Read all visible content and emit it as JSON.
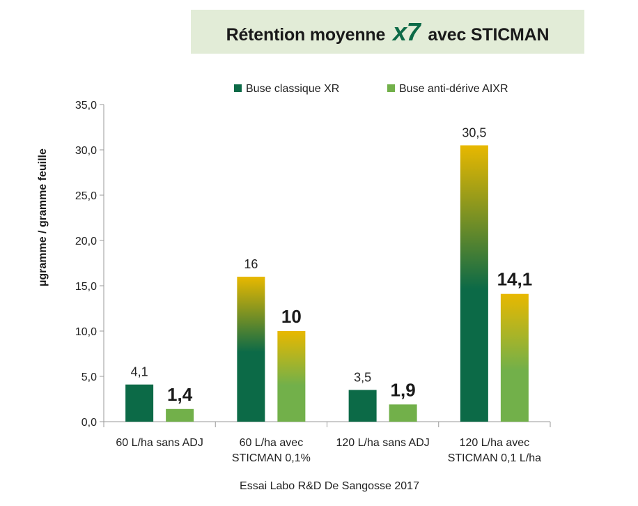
{
  "title": {
    "before": "Rétention moyenne",
    "accent": "x7",
    "after": "avec STICMAN"
  },
  "source": "Essai Labo R&D De Sangosse 2017",
  "colors": {
    "dark_green": "#0c6a47",
    "light_green": "#72b04a",
    "gold": "#e8b800",
    "title_bg": "#e2ecd7"
  },
  "chart_data": {
    "type": "bar",
    "ylabel": "µgramme / gramme feuille",
    "ylim": [
      0,
      35
    ],
    "yticks": [
      "0,0",
      "5,0",
      "10,0",
      "15,0",
      "20,0",
      "25,0",
      "30,0",
      "35,0"
    ],
    "legend_position": "top",
    "categories": [
      [
        "60 L/ha sans ADJ"
      ],
      [
        "60 L/ha avec",
        "STICMAN 0,1%"
      ],
      [
        "120 L/ha sans ADJ"
      ],
      [
        "120 L/ha avec",
        "STICMAN 0,1 L/ha"
      ]
    ],
    "series": [
      {
        "name": "Buse classique XR",
        "values": [
          4.1,
          16,
          3.5,
          30.5
        ],
        "labels": [
          "4,1",
          "16",
          "3,5",
          "30,5"
        ],
        "fill": [
          "solid",
          "gradient",
          "solid",
          "gradient"
        ]
      },
      {
        "name": "Buse anti-dérive AIXR",
        "values": [
          1.4,
          10,
          1.9,
          14.1
        ],
        "labels": [
          "1,4",
          "10",
          "1,9",
          "14,1"
        ],
        "fill": [
          "solid",
          "gradient",
          "solid",
          "gradient"
        ]
      }
    ]
  }
}
